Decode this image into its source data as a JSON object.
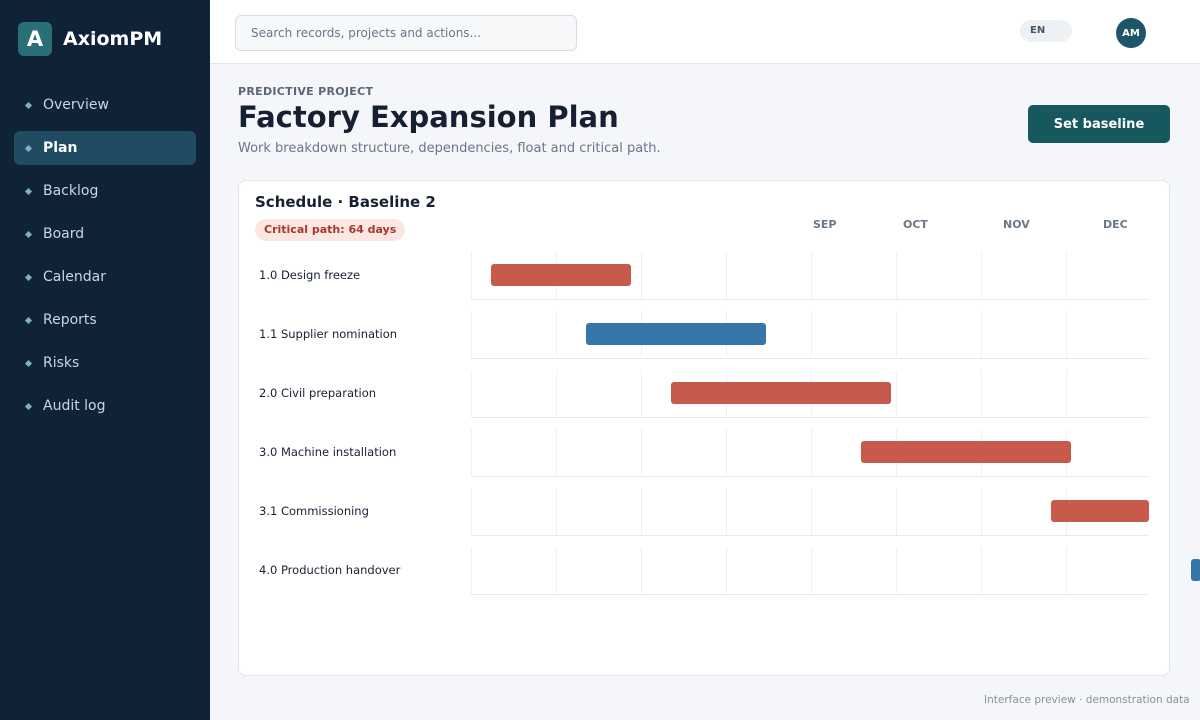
{
  "app": {
    "name": "AxiomPM",
    "logo_letter": "A"
  },
  "sidebar": {
    "items": [
      {
        "label": "Overview",
        "active": false
      },
      {
        "label": "Plan",
        "active": true
      },
      {
        "label": "Backlog",
        "active": false
      },
      {
        "label": "Board",
        "active": false
      },
      {
        "label": "Calendar",
        "active": false
      },
      {
        "label": "Reports",
        "active": false
      },
      {
        "label": "Risks",
        "active": false
      },
      {
        "label": "Audit log",
        "active": false
      }
    ]
  },
  "topbar": {
    "search_placeholder": "Search records, projects and actions...",
    "language": "EN",
    "avatar_initials": "AM"
  },
  "header": {
    "eyebrow": "PREDICTIVE PROJECT",
    "title": "Factory Expansion Plan",
    "subtitle": "Work breakdown structure, dependencies, float and critical path.",
    "primary_action": "Set baseline"
  },
  "schedule": {
    "title": "Schedule · Baseline 2",
    "critical_path_badge": "Critical path: 64 days",
    "months": [
      "SEP",
      "OCT",
      "NOV",
      "DEC"
    ],
    "tasks": [
      {
        "label": "1.0 Design freeze",
        "critical": true
      },
      {
        "label": "1.1 Supplier nomination",
        "critical": false
      },
      {
        "label": "2.0 Civil preparation",
        "critical": true
      },
      {
        "label": "3.0 Machine installation",
        "critical": true
      },
      {
        "label": "3.1 Commissioning",
        "critical": true
      },
      {
        "label": "4.0 Production handover",
        "critical": false
      }
    ]
  },
  "footer": {
    "note": "Interface preview · demonstration data"
  },
  "colors": {
    "sidebar_bg": "#0f2236",
    "accent": "#17575e",
    "critical_bar": "#c85a4b",
    "normal_bar": "#3575a7"
  }
}
